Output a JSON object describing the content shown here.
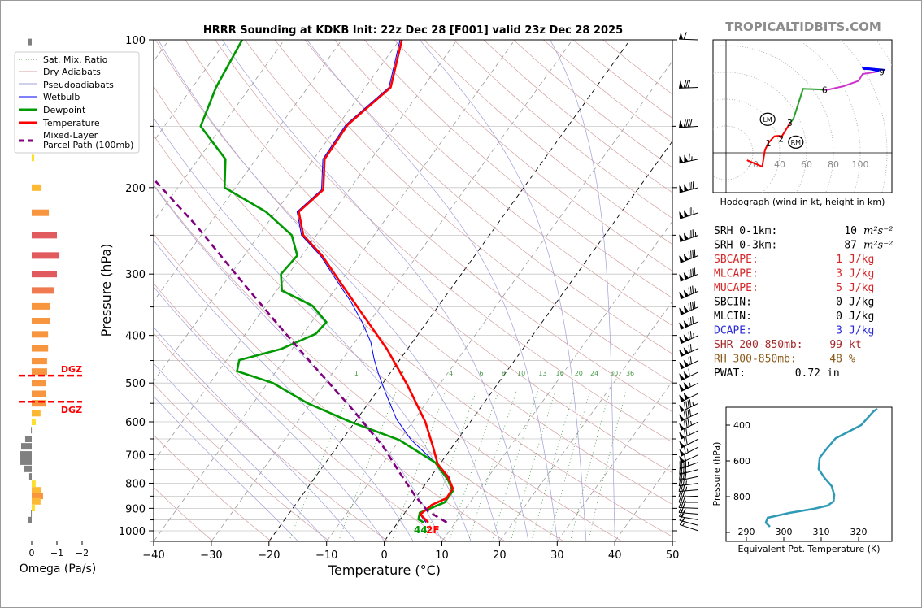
{
  "title": "HRRR Sounding at KDKB Init: 22z Dec 28 [F001] valid 23z Dec 28 2025",
  "brand": "TROPICALTIDBITS.COM",
  "legend": [
    {
      "label": "Sat. Mix. Ratio",
      "color": "#4a9a4a"
    },
    {
      "label": "Dry Adiabats",
      "color": "#d4a0a0"
    },
    {
      "label": "Pseudoadiabats",
      "color": "#a0a0d8"
    },
    {
      "label": "Wetbulb",
      "color": "#0000ff"
    },
    {
      "label": "Dewpoint",
      "color": "#009900"
    },
    {
      "label": "Temperature",
      "color": "#ff0000"
    },
    {
      "label": "Mixed-Layer",
      "label2": "Parcel Path (100mb)",
      "color": "#800080"
    }
  ],
  "surface_label": {
    "dewpoint_part": "44",
    "temp_part": "2F"
  },
  "dgz": {
    "label": "DGZ",
    "top_hpa": 483,
    "bottom_hpa": 546
  },
  "stats": [
    {
      "label": "SRH 0-1km:",
      "value": "10",
      "unit": "m²s⁻²",
      "color": "#000000"
    },
    {
      "label": "SRH 0-3km:",
      "value": "87",
      "unit": "m²s⁻²",
      "color": "#000000"
    },
    {
      "label": "SBCAPE:",
      "value": "1",
      "unit": "J/kg",
      "color": "#d62728"
    },
    {
      "label": "MLCAPE:",
      "value": "3",
      "unit": "J/kg",
      "color": "#d62728"
    },
    {
      "label": "MUCAPE:",
      "value": "5",
      "unit": "J/kg",
      "color": "#d62728"
    },
    {
      "label": "SBCIN:",
      "value": "0",
      "unit": "J/kg",
      "color": "#000000"
    },
    {
      "label": "MLCIN:",
      "value": "0",
      "unit": "J/kg",
      "color": "#000000"
    },
    {
      "label": "DCAPE:",
      "value": "3",
      "unit": "J/kg",
      "color": "#2a2ad8"
    },
    {
      "label": "SHR 200-850mb:",
      "value": "99",
      "unit": "kt",
      "color": "#a52a2a"
    },
    {
      "label": "RH 300-850mb:",
      "value": "48",
      "unit": "%",
      "color": "#8b5a1a"
    },
    {
      "label": "PWAT:",
      "value": "0.72",
      "unit": "in",
      "color": "#000000"
    }
  ],
  "chart_data": [
    {
      "type": "line",
      "name": "skew-t",
      "xlabel": "Temperature (°C)",
      "ylabel": "Pressure (hPa)",
      "xlim": [
        -40,
        50
      ],
      "ylim": [
        1050,
        100
      ],
      "xticks": [
        "−40",
        "−30",
        "−20",
        "−10",
        "0",
        "10",
        "20",
        "30",
        "40",
        "50"
      ],
      "xtick_values": [
        -40,
        -30,
        -20,
        -10,
        0,
        10,
        20,
        30,
        40,
        50
      ],
      "yticks": [
        100,
        200,
        300,
        400,
        500,
        600,
        700,
        800,
        900,
        1000
      ],
      "mixing_ratio_labels": [
        "1",
        "2",
        "4",
        "6",
        "8",
        "10",
        "13",
        "16",
        "20",
        "24",
        "30",
        "36"
      ],
      "series": [
        {
          "name": "Temperature",
          "color": "#ff0000",
          "p": [
            962,
            926,
            885,
            859,
            820,
            775,
            731,
            677,
            600,
            505,
            426,
            368,
            316,
            275,
            250,
            224,
            202,
            175,
            149,
            125,
            100
          ],
          "t": [
            5.3,
            2.9,
            3.7,
            5.4,
            5.3,
            2.9,
            -0.4,
            -3.2,
            -7.8,
            -15.5,
            -23.6,
            -31.3,
            -39.3,
            -46.5,
            -52.3,
            -56,
            -54.5,
            -58.1,
            -58.4,
            -55.6,
            -59.6
          ]
        },
        {
          "name": "Dewpoint",
          "color": "#009900",
          "p": [
            962,
            948,
            919,
            875,
            830,
            788,
            726,
            653,
            600,
            550,
            500,
            473,
            449,
            426,
            397,
            376,
            348,
            324,
            300,
            275,
            250,
            224,
            200,
            175,
            150,
            125,
            100
          ],
          "t": [
            4.5,
            3.2,
            2.6,
            5.6,
            5.6,
            3.4,
            -1,
            -10.1,
            -20.8,
            -30.5,
            -39.1,
            -46.8,
            -47.8,
            -41.9,
            -37.8,
            -37.4,
            -41.9,
            -49.1,
            -51.3,
            -50.8,
            -54.3,
            -61.7,
            -71.9,
            -75.3,
            -83.7,
            -85.9,
            -87.3
          ]
        },
        {
          "name": "Wetbulb",
          "color": "#0000ff",
          "p": [
            962,
            926,
            885,
            859,
            820,
            775,
            726,
            653,
            593,
            529,
            477,
            446,
            413,
            376,
            341,
            304,
            275,
            250,
            224,
            202,
            175,
            149,
            125,
            100
          ],
          "t": [
            4.9,
            2.8,
            3.6,
            5.4,
            5.3,
            3.1,
            -1,
            -8,
            -13.1,
            -17.9,
            -22.1,
            -24.6,
            -27.2,
            -31.2,
            -35.8,
            -41.7,
            -46.8,
            -52.6,
            -56.3,
            -54.8,
            -58.4,
            -58.7,
            -55.9,
            -59.9
          ]
        },
        {
          "name": "Mixed-Layer Parcel Path (100mb)",
          "color": "#800080",
          "p": [
            962,
            912,
            851,
            760,
            673,
            560,
            472,
            397,
            316,
            238,
            194
          ],
          "t": [
            8.5,
            3.8,
            -0.2,
            -6,
            -12.1,
            -22.6,
            -32.8,
            -43,
            -56.2,
            -72.3,
            -84.7
          ]
        }
      ],
      "wind_barbs": [
        {
          "p": 100,
          "kt": 60,
          "dir": 272
        },
        {
          "p": 125,
          "kt": 80,
          "dir": 268
        },
        {
          "p": 150,
          "kt": 90,
          "dir": 266
        },
        {
          "p": 175,
          "kt": 115,
          "dir": 258
        },
        {
          "p": 200,
          "kt": 130,
          "dir": 255
        },
        {
          "p": 225,
          "kt": 125,
          "dir": 252
        },
        {
          "p": 250,
          "kt": 135,
          "dir": 250
        },
        {
          "p": 275,
          "kt": 140,
          "dir": 248
        },
        {
          "p": 300,
          "kt": 140,
          "dir": 248
        },
        {
          "p": 325,
          "kt": 135,
          "dir": 246
        },
        {
          "p": 350,
          "kt": 140,
          "dir": 246
        },
        {
          "p": 375,
          "kt": 130,
          "dir": 246
        },
        {
          "p": 400,
          "kt": 125,
          "dir": 245
        },
        {
          "p": 425,
          "kt": 120,
          "dir": 245
        },
        {
          "p": 450,
          "kt": 120,
          "dir": 244
        },
        {
          "p": 475,
          "kt": 110,
          "dir": 244
        },
        {
          "p": 500,
          "kt": 105,
          "dir": 244
        },
        {
          "p": 525,
          "kt": 100,
          "dir": 244
        },
        {
          "p": 550,
          "kt": 95,
          "dir": 244
        },
        {
          "p": 575,
          "kt": 90,
          "dir": 244
        },
        {
          "p": 600,
          "kt": 85,
          "dir": 244
        },
        {
          "p": 625,
          "kt": 75,
          "dir": 244
        },
        {
          "p": 650,
          "kt": 70,
          "dir": 242
        },
        {
          "p": 675,
          "kt": 65,
          "dir": 242
        },
        {
          "p": 700,
          "kt": 60,
          "dir": 245
        },
        {
          "p": 725,
          "kt": 45,
          "dir": 250
        },
        {
          "p": 750,
          "kt": 40,
          "dir": 255
        },
        {
          "p": 775,
          "kt": 40,
          "dir": 258
        },
        {
          "p": 800,
          "kt": 35,
          "dir": 262
        },
        {
          "p": 825,
          "kt": 35,
          "dir": 265
        },
        {
          "p": 850,
          "kt": 30,
          "dir": 268
        },
        {
          "p": 875,
          "kt": 30,
          "dir": 270
        },
        {
          "p": 900,
          "kt": 30,
          "dir": 272
        },
        {
          "p": 925,
          "kt": 25,
          "dir": 275
        },
        {
          "p": 950,
          "kt": 20,
          "dir": 280
        },
        {
          "p": 975,
          "kt": 15,
          "dir": 285
        },
        {
          "p": 1000,
          "kt": 15,
          "dir": 288
        }
      ]
    },
    {
      "type": "bar",
      "name": "omega",
      "xlabel": "Omega (Pa/s)",
      "xticks": [
        "0",
        "−1",
        "−2"
      ],
      "xtick_values": [
        0,
        -1,
        -2
      ],
      "p": [
        101,
        174,
        200,
        225,
        250,
        275,
        300,
        324,
        349,
        374,
        398,
        425,
        451,
        474,
        500,
        526,
        550,
        576,
        600,
        624,
        650,
        673,
        699,
        723,
        748,
        775,
        802,
        827,
        849,
        871,
        899,
        923,
        951
      ],
      "omega": [
        0.13,
        -0.1,
        -0.39,
        -0.68,
        -1.0,
        -1.1,
        -1.0,
        -0.87,
        -0.74,
        -0.71,
        -0.65,
        -0.65,
        -0.61,
        -0.61,
        -0.55,
        -0.55,
        -0.55,
        -0.35,
        -0.16,
        0.03,
        0.26,
        0.42,
        0.48,
        0.45,
        0.29,
        0.1,
        -0.16,
        -0.39,
        -0.45,
        -0.35,
        -0.13,
        0.03,
        0.13
      ]
    },
    {
      "type": "line",
      "name": "hodograph",
      "caption": "Hodograph (wind in kt, height in km)",
      "ring_labels": [
        "20",
        "40",
        "60",
        "80",
        "100"
      ],
      "segments": [
        {
          "color": "#ff0000",
          "u": [
            15.6,
            27,
            29,
            31.5,
            36,
            39.4,
            41,
            46,
            48
          ],
          "v": [
            -5.5,
            -10.3,
            2.2,
            7.3,
            12.3,
            12.7,
            11.3,
            19.4,
            22.4
          ]
        },
        {
          "color": "#2ca02c",
          "u": [
            48,
            50.3,
            57.4,
            69.5,
            73.3
          ],
          "v": [
            22.4,
            25.5,
            47.7,
            47.3,
            47
          ]
        },
        {
          "color": "#cc33cc",
          "u": [
            73.3,
            75.6,
            87.7,
            98.8,
            101.8,
            110.9,
            114
          ],
          "v": [
            47,
            47,
            49.7,
            53.7,
            58.8,
            60.2,
            60.8
          ]
        },
        {
          "color": "#0000ff",
          "u": [
            114,
            101.4,
            118.8,
            102
          ],
          "v": [
            60.8,
            63.5,
            61.8,
            62.5
          ]
        }
      ],
      "height_labels": [
        {
          "text": "1",
          "u": 31.5,
          "v": 7.3
        },
        {
          "text": "2",
          "u": 41,
          "v": 10.5
        },
        {
          "text": "3",
          "u": 47.5,
          "v": 22.4
        },
        {
          "text": "6",
          "u": 73.5,
          "v": 47
        },
        {
          "text": "9",
          "u": 116,
          "v": 60.2
        }
      ],
      "storm_motion": [
        {
          "text": "LM",
          "u": 31,
          "v": 25
        },
        {
          "text": "RM",
          "u": 52,
          "v": 8
        }
      ]
    },
    {
      "type": "line",
      "name": "theta-e",
      "xlabel": "Equivalent Pot. Temperature (K)",
      "ylabel": "Pressure (hPa)",
      "xticks": [
        "290",
        "300",
        "310",
        "320"
      ],
      "xtick_values": [
        290,
        300,
        310,
        320
      ],
      "yticks": [
        "400",
        "600",
        "800"
      ],
      "ytick_values": [
        400,
        600,
        800
      ],
      "color": "#2e9ab5",
      "p": [
        309,
        323,
        400,
        436,
        473,
        527,
        582,
        645,
        695,
        741,
        791,
        827,
        850,
        868,
        891,
        918,
        945,
        968
      ],
      "theta_e": [
        325,
        324,
        320.7,
        317.4,
        313.9,
        311.7,
        309.6,
        309.3,
        310.9,
        312.8,
        313.5,
        313.3,
        311.7,
        308,
        301.5,
        295.7,
        295.2,
        296.3
      ]
    }
  ]
}
